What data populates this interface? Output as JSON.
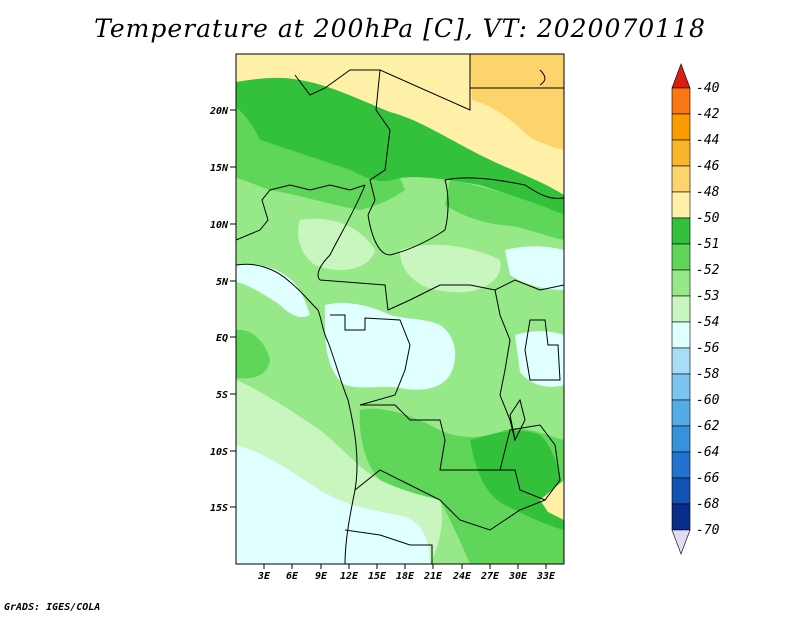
{
  "title": "Temperature at 200hPa [C], VT: 2020070118",
  "credit": "GrADS: IGES/COLA",
  "map": {
    "lat_labels": [
      "20N",
      "15N",
      "10N",
      "5N",
      "EQ",
      "5S",
      "10S",
      "15S"
    ],
    "lon_labels": [
      "3E",
      "6E",
      "9E",
      "12E",
      "15E",
      "18E",
      "21E",
      "24E",
      "27E",
      "30E",
      "33E"
    ]
  },
  "legend": {
    "labels": [
      "-40",
      "-42",
      "-44",
      "-46",
      "-48",
      "-50",
      "-51",
      "-52",
      "-53",
      "-54",
      "-56",
      "-58",
      "-60",
      "-62",
      "-64",
      "-66",
      "-68",
      "-70"
    ],
    "colors": [
      "#f03c28",
      "#fa7814",
      "#fa9b00",
      "#fbb52a",
      "#fdd36c",
      "#fff0a8",
      "#33c13c",
      "#5fd65a",
      "#97e889",
      "#c8f6be",
      "#e0ffff",
      "#a8ddf7",
      "#7cc5ee",
      "#55abe6",
      "#3891dc",
      "#2272cf",
      "#1152b5",
      "#0a2c8a",
      "#000864"
    ],
    "top_arrow_color": "#d91e10",
    "bottom_arrow_color": "#e2dcf3"
  }
}
